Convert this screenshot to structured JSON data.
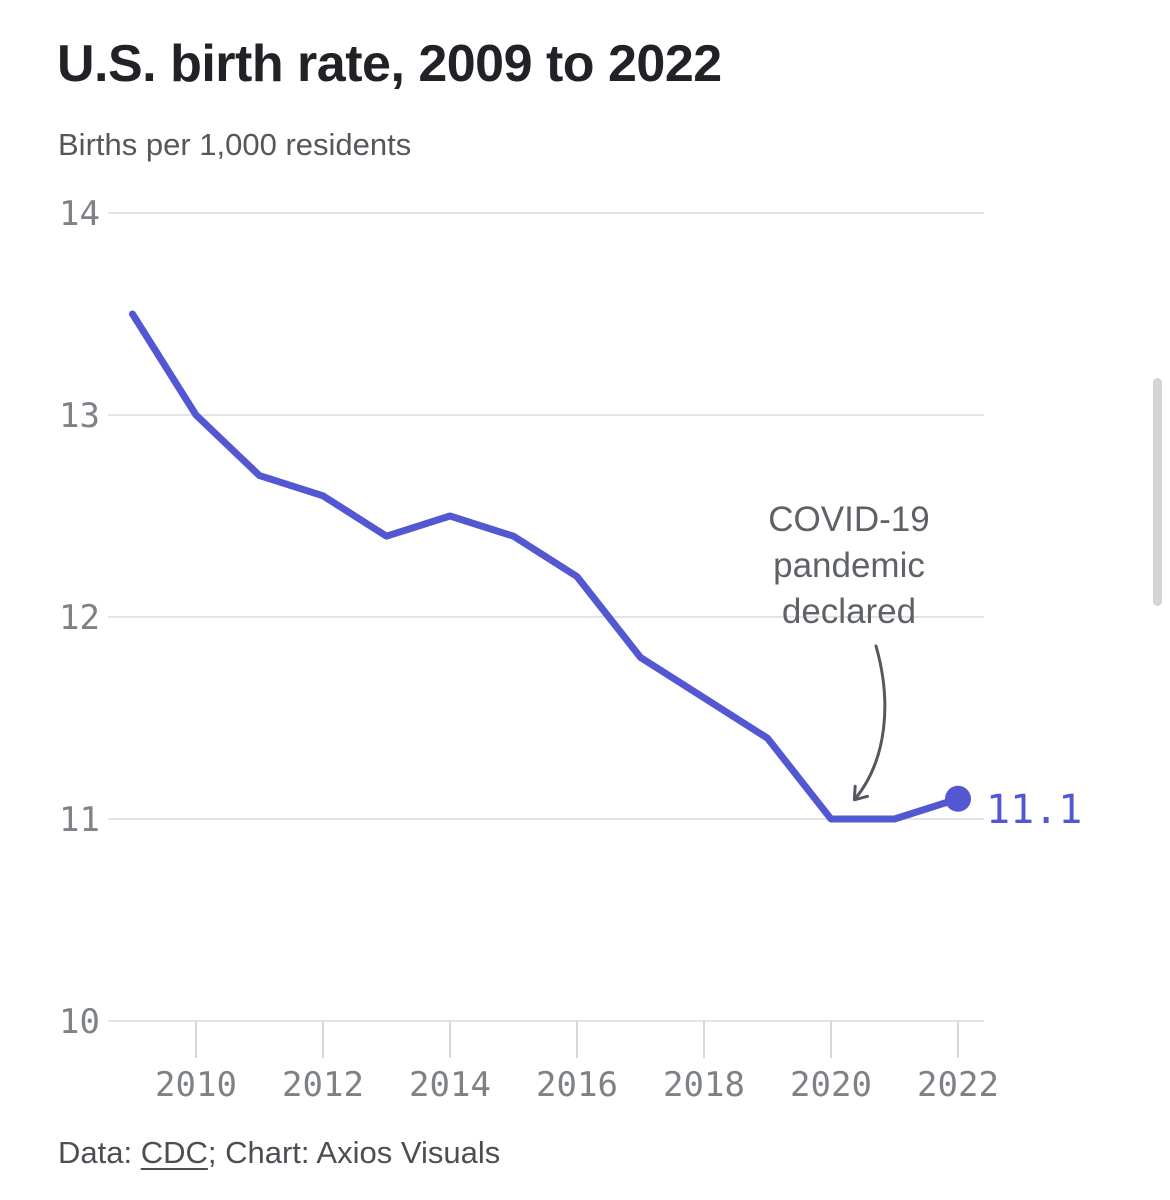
{
  "header": {
    "title": "U.S. birth rate, 2009 to 2022",
    "subtitle": "Births per 1,000 residents"
  },
  "chart_data": {
    "type": "line",
    "title": "U.S. birth rate, 2009 to 2022",
    "ylabel": "Births per 1,000 residents",
    "x": [
      2009,
      2010,
      2011,
      2012,
      2013,
      2014,
      2015,
      2016,
      2017,
      2018,
      2019,
      2020,
      2021,
      2022
    ],
    "values": [
      13.5,
      13.0,
      12.7,
      12.6,
      12.4,
      12.5,
      12.4,
      12.2,
      11.8,
      11.6,
      11.4,
      11.0,
      11.0,
      11.1
    ],
    "ylim": [
      10,
      14
    ],
    "y_ticks": [
      10,
      11,
      12,
      13,
      14
    ],
    "x_ticks": [
      2010,
      2012,
      2014,
      2016,
      2018,
      2020,
      2022
    ],
    "grid": "horizontal",
    "legend": "none",
    "end_label": "11.1",
    "annotation": {
      "text": "COVID-19 pandemic declared",
      "target_year": 2020
    },
    "line_color": "#5457d2"
  },
  "footer": {
    "prefix": "Data: ",
    "source_link": "CDC",
    "suffix": "; Chart: Axios Visuals"
  },
  "colors": {
    "accent": "#5457d2",
    "grid": "#e4e4e4",
    "tick": "#d8d8d8",
    "axis_text": "#7e8286",
    "title_text": "#202226",
    "muted_text": "#54575c",
    "annotation_text": "#5e6165",
    "arrow": "#55585c",
    "footer_text": "#4b4f54",
    "scrollbar": "#d4d4d5"
  }
}
